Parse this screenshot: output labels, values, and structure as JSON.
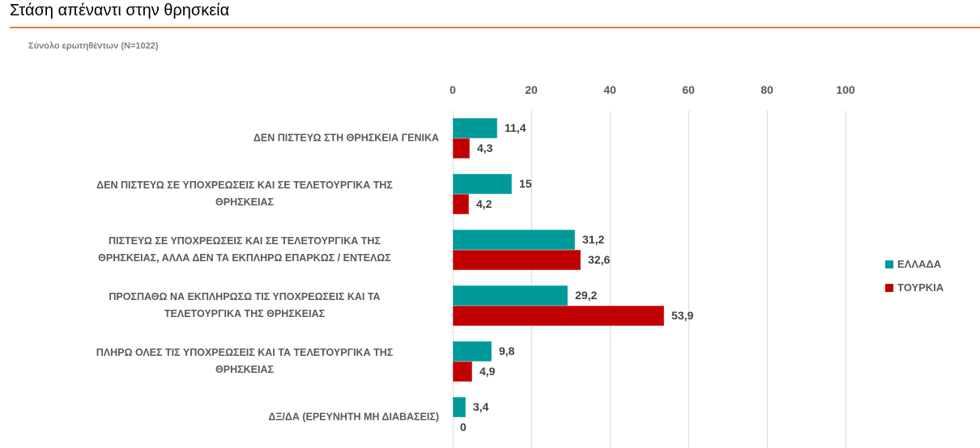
{
  "header": {
    "title": "Στάση απέναντι στην θρησκεία",
    "subtitle": "Σύνολο ερωτηθέντων (N=1022)",
    "accent_color": "#ED7D31"
  },
  "chart_data": {
    "type": "bar",
    "orientation": "horizontal",
    "title": "Στάση απέναντι στην θρησκεία",
    "subtitle": "Σύνολο ερωτηθέντων (N=1022)",
    "xlabel": "",
    "ylabel": "",
    "xlim": [
      0,
      100
    ],
    "x_ticks": [
      "0",
      "20",
      "40",
      "60",
      "80",
      "100"
    ],
    "grid": true,
    "legend_position": "right",
    "categories": [
      "ΔΕΝ ΠΙΣΤΕΥΩ ΣΤΗ ΘΡΗΣΚΕΙΑ ΓΕΝΙΚΑ",
      "ΔΕΝ ΠΙΣΤΕΥΩ ΣΕ ΥΠΟΧΡΕΩΣΕΙΣ ΚΑΙ ΣΕ ΤΕΛΕΤΟΥΡΓΙΚΑ ΤΗΣ ΘΡΗΣΚΕΙΑΣ",
      "ΠΙΣΤΕΥΩ ΣΕ ΥΠΟΧΡΕΩΣΕΙΣ ΚΑΙ ΣΕ ΤΕΛΕΤΟΥΡΓΙΚΑ ΤΗΣ ΘΡΗΣΚΕΙΑΣ, ΑΛΛΑ ΔΕΝ ΤΑ ΕΚΠΛΗΡΩ ΕΠΑΡΚΩΣ / ΕΝΤΕΛΩΣ",
      "ΠΡΟΣΠΑΘΩ ΝΑ ΕΚΠΛΗΡΩΣΩ ΤΙΣ ΥΠΟΧΡΕΩΣΕΙΣ ΚΑΙ ΤΑ ΤΕΛΕΤΟΥΡΓΙΚΑ ΤΗΣ ΘΡΗΣΚΕΙΑΣ",
      "ΠΛΗΡΩ ΟΛΕΣ ΤΙΣ ΥΠΟΧΡΕΩΣΕΙΣ ΚΑΙ ΤΑ ΤΕΛΕΤΟΥΡΓΙΚΑ ΤΗΣ ΘΡΗΣΚΕΙΑΣ",
      "ΔΞ/ΔΑ (ΕΡΕΥΝΗΤΗ ΜΗ ΔΙΑΒΑΣΕΙΣ)"
    ],
    "category_lines": [
      [
        "ΔΕΝ ΠΙΣΤΕΥΩ ΣΤΗ ΘΡΗΣΚΕΙΑ ΓΕΝΙΚΑ"
      ],
      [
        "ΔΕΝ ΠΙΣΤΕΥΩ ΣΕ ΥΠΟΧΡΕΩΣΕΙΣ ΚΑΙ ΣΕ ΤΕΛΕΤΟΥΡΓΙΚΑ ΤΗΣ",
        "ΘΡΗΣΚΕΙΑΣ"
      ],
      [
        "ΠΙΣΤΕΥΩ ΣΕ ΥΠΟΧΡΕΩΣΕΙΣ ΚΑΙ ΣΕ ΤΕΛΕΤΟΥΡΓΙΚΑ ΤΗΣ",
        "ΘΡΗΣΚΕΙΑΣ, ΑΛΛΑ ΔΕΝ ΤΑ ΕΚΠΛΗΡΩ ΕΠΑΡΚΩΣ / ΕΝΤΕΛΩΣ"
      ],
      [
        "ΠΡΟΣΠΑΘΩ ΝΑ ΕΚΠΛΗΡΩΣΩ ΤΙΣ ΥΠΟΧΡΕΩΣΕΙΣ ΚΑΙ ΤΑ",
        "ΤΕΛΕΤΟΥΡΓΙΚΑ ΤΗΣ ΘΡΗΣΚΕΙΑΣ"
      ],
      [
        "ΠΛΗΡΩ ΟΛΕΣ ΤΙΣ ΥΠΟΧΡΕΩΣΕΙΣ ΚΑΙ ΤΑ ΤΕΛΕΤΟΥΡΓΙΚΑ ΤΗΣ",
        "ΘΡΗΣΚΕΙΑΣ"
      ],
      [
        "ΔΞ/ΔΑ (ΕΡΕΥΝΗΤΗ ΜΗ ΔΙΑΒΑΣΕΙΣ)"
      ]
    ],
    "series": [
      {
        "name": "ΕΛΛΑΔΑ",
        "color": "#009999",
        "values": [
          11.4,
          15,
          31.2,
          29.2,
          9.8,
          3.4
        ],
        "labels": [
          "11,4",
          "15",
          "31,2",
          "29,2",
          "9,8",
          "3,4"
        ]
      },
      {
        "name": "ΤΟΥΡΚΙΑ",
        "color": "#C00000",
        "values": [
          4.3,
          4.2,
          32.6,
          53.9,
          4.9,
          0
        ],
        "labels": [
          "4,3",
          "4,2",
          "32,6",
          "53,9",
          "4,9",
          "0"
        ]
      }
    ]
  }
}
